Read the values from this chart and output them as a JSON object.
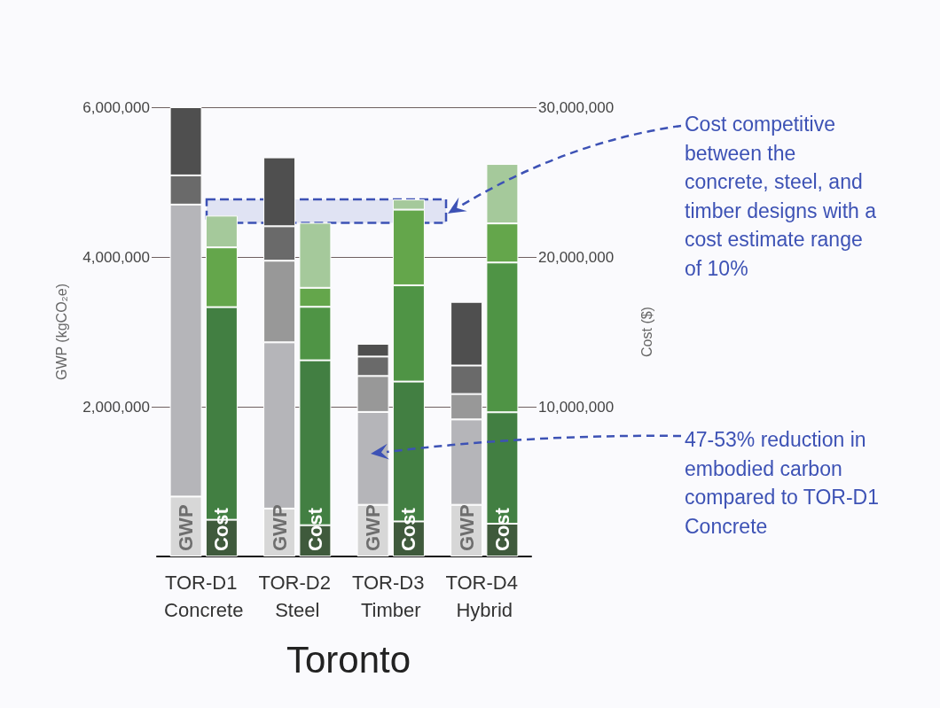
{
  "chart_data": {
    "type": "bar",
    "title": "Toronto",
    "categories": [
      "TOR-D1 Concrete",
      "TOR-D2 Steel",
      "TOR-D3 Timber",
      "TOR-D4 Hybrid"
    ],
    "ylabel": "GWP (kgCO₂e)",
    "y2label": "Cost ($)",
    "stacked": true,
    "grid": "y",
    "ylim": [
      0,
      6000000
    ],
    "yticks": [
      {
        "value": 2000000,
        "label": "2,000,000"
      },
      {
        "value": 4000000,
        "label": "4,000,000"
      },
      {
        "value": 6000000,
        "label": "6,000,000"
      }
    ],
    "y2lim": [
      0,
      30000000
    ],
    "y2ticks": [
      {
        "value": 10000000,
        "label": "10,000,000"
      },
      {
        "value": 20000000,
        "label": "20,000,000"
      },
      {
        "value": 30000000,
        "label": "30,000,000"
      }
    ],
    "bands": [
      {
        "axis": "y2",
        "from": 22280000,
        "to": 23840000,
        "color": "#3d52b5"
      }
    ],
    "series": [
      {
        "name": "GWP",
        "color": "#d7d7d7",
        "values": [
          800000,
          640000,
          690000,
          690000
        ]
      },
      {
        "color": "#b5b5b9",
        "values": [
          3900000,
          2220000,
          1240000,
          1140000
        ]
      },
      {
        "color": "#989898",
        "values": [
          null,
          1090000,
          480000,
          340000
        ]
      },
      {
        "color": "#6a6a6a",
        "values": [
          390000,
          460000,
          260000,
          380000
        ]
      },
      {
        "color": "#4f4f4f",
        "values": [
          910000,
          920000,
          170000,
          850000
        ]
      },
      {
        "name": "Cost",
        "color": "#3f5a3c",
        "axis": "y2",
        "values": [
          2450000,
          2090000,
          2340000,
          2190000
        ]
      },
      {
        "color": "#427f42",
        "axis": "y2",
        "values": [
          14200000,
          11010000,
          9340000,
          7440000
        ]
      },
      {
        "color": "#4f9445",
        "axis": "y2",
        "values": [
          null,
          3570000,
          6430000,
          10000000
        ]
      },
      {
        "color": "#64a64b",
        "axis": "y2",
        "values": [
          3990000,
          1270000,
          5050000,
          2610000
        ]
      },
      {
        "color": "#a5c99b",
        "axis": "y2",
        "values": [
          2120000,
          4340000,
          680000,
          3970000
        ]
      }
    ],
    "annotations": [
      "Cost competitive between the concrete, steel, and timber designs with a cost estimate range of 10%",
      "47-53% reduction in embodied carbon compared to TOR-D1 Concrete"
    ]
  }
}
